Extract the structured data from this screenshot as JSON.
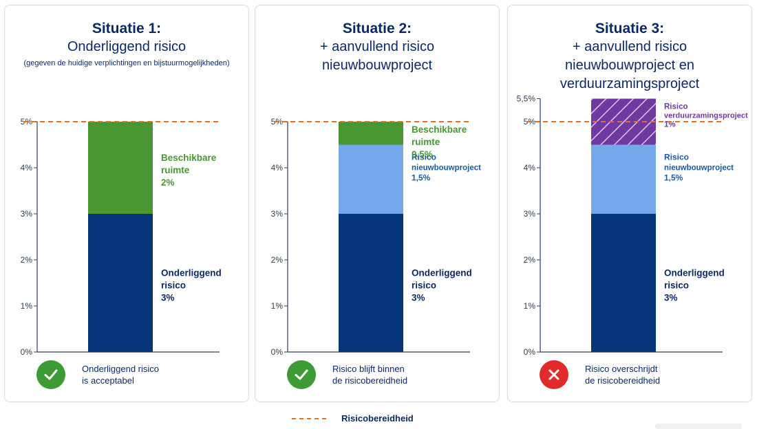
{
  "chart_data": [
    {
      "type": "bar",
      "stacked": true,
      "title": "Situatie 1:",
      "subtitle": [
        "Onderliggend risico"
      ],
      "note": "(gegeven de huidige verplichtingen en bijstuurmogelijkheden)",
      "yticks": [
        "0%",
        "1%",
        "2%",
        "3%",
        "4%",
        "5%"
      ],
      "extra_tick": null,
      "ylim": [
        0,
        5.5
      ],
      "threshold": 5,
      "segments": [
        {
          "value": 3,
          "label": [
            "Onderliggend",
            "risico",
            "3%"
          ],
          "color": "#06357a",
          "text_color": "#0a2a66",
          "hatched": false
        },
        {
          "value": 2,
          "label": [
            "Beschikbare",
            "ruimte",
            "2%"
          ],
          "color": "#4a9632",
          "text_color": "#4a9632",
          "hatched": false
        }
      ],
      "status": {
        "type": "ok",
        "text": [
          "Onderliggend risico",
          "is acceptabel"
        ]
      }
    },
    {
      "type": "bar",
      "stacked": true,
      "title": "Situatie 2:",
      "subtitle": [
        "+ aanvullend risico",
        "nieuwbouwproject"
      ],
      "note": "",
      "yticks": [
        "0%",
        "1%",
        "2%",
        "3%",
        "4%",
        "5%"
      ],
      "extra_tick": null,
      "ylim": [
        0,
        5.5
      ],
      "threshold": 5,
      "segments": [
        {
          "value": 3,
          "label": [
            "Onderliggend",
            "risico",
            "3%"
          ],
          "color": "#06357a",
          "text_color": "#0a2a66",
          "hatched": false
        },
        {
          "value": 1.5,
          "label": [
            "Risico",
            "nieuwbouwproject",
            "1,5%"
          ],
          "color": "#74a8eb",
          "text_color": "#1a5aa6",
          "hatched": false
        },
        {
          "value": 0.5,
          "label": [
            "Beschikbare",
            "ruimte",
            "0,5%"
          ],
          "color": "#4a9632",
          "text_color": "#4a9632",
          "hatched": false
        }
      ],
      "status": {
        "type": "ok",
        "text": [
          "Risico blijft binnen",
          "de risicobereidheid"
        ]
      }
    },
    {
      "type": "bar",
      "stacked": true,
      "title": "Situatie 3:",
      "subtitle": [
        "+ aanvullend risico",
        "nieuwbouwproject en",
        "verduurzamingsproject"
      ],
      "note": "",
      "yticks": [
        "0%",
        "1%",
        "2%",
        "3%",
        "4%",
        "5%"
      ],
      "extra_tick": "5,5%",
      "ylim": [
        0,
        5.5
      ],
      "threshold": 5,
      "segments": [
        {
          "value": 3,
          "label": [
            "Onderliggend",
            "risico",
            "3%"
          ],
          "color": "#06357a",
          "text_color": "#0a2a66",
          "hatched": false
        },
        {
          "value": 1.5,
          "label": [
            "Risico",
            "nieuwbouwproject",
            "1,5%"
          ],
          "color": "#74a8eb",
          "text_color": "#1a5aa6",
          "hatched": false
        },
        {
          "value": 1,
          "label": [
            "Risico",
            "verduurzamingsproject",
            "1%"
          ],
          "color": "#6e3aa0",
          "text_color": "#6e3aa0",
          "hatched": true
        }
      ],
      "status": {
        "type": "bad",
        "text": [
          "Risico overschrijdt",
          "de risicobereidheid"
        ]
      }
    }
  ],
  "legend": {
    "label": "Risicobereidheid",
    "color": "#e2711d"
  }
}
